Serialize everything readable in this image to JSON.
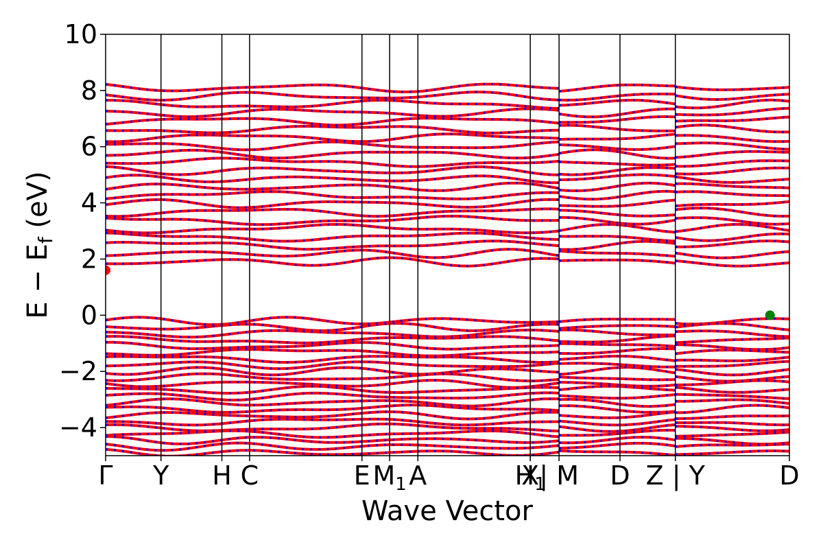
{
  "chart_data": {
    "type": "line",
    "xlabel": "Wave Vector",
    "ylabel_main": "E − E",
    "ylabel_sub": "f",
    "ylabel_unit": " (eV)",
    "ylim": [
      -5,
      10
    ],
    "yticks": [
      -4,
      -2,
      0,
      2,
      4,
      6,
      8,
      10
    ],
    "ytick_labels": [
      "−4",
      "−2",
      "0",
      "2",
      "4",
      "6",
      "8",
      "10"
    ],
    "xlim": [
      0,
      12.35
    ],
    "kpath": [
      {
        "x": 0.0,
        "label": "Γ"
      },
      {
        "x": 1.0,
        "label": "Y"
      },
      {
        "x": 2.1,
        "label": "H"
      },
      {
        "x": 2.6,
        "label": "C"
      },
      {
        "x": 4.63,
        "label": "E"
      },
      {
        "x": 5.13,
        "label": "M",
        "sub": "1"
      },
      {
        "x": 5.64,
        "label": "A"
      },
      {
        "x": 7.67,
        "label": "X"
      },
      {
        "x": 7.67,
        "label": "H",
        "sub": "1"
      },
      {
        "x": 8.19,
        "label": "| M"
      },
      {
        "x": 9.29,
        "label": "D"
      },
      {
        "x": 10.29,
        "label": "Z | Y"
      },
      {
        "x": 12.35,
        "label": "D"
      }
    ],
    "segment_breaks": [
      8.19,
      10.29
    ],
    "band_colors": {
      "line": "#ff0000",
      "dots": "#0000ff"
    },
    "bands_conduction": 22,
    "bands_valence": 22,
    "cbm": {
      "x": 0.0,
      "y": 1.6,
      "color": "#ff0000"
    },
    "vbm": {
      "x": 12.0,
      "y": 0.0,
      "color": "#008000"
    },
    "conduction_range": [
      1.6,
      8.2
    ],
    "valence_range": [
      -5.0,
      0.0
    ]
  }
}
